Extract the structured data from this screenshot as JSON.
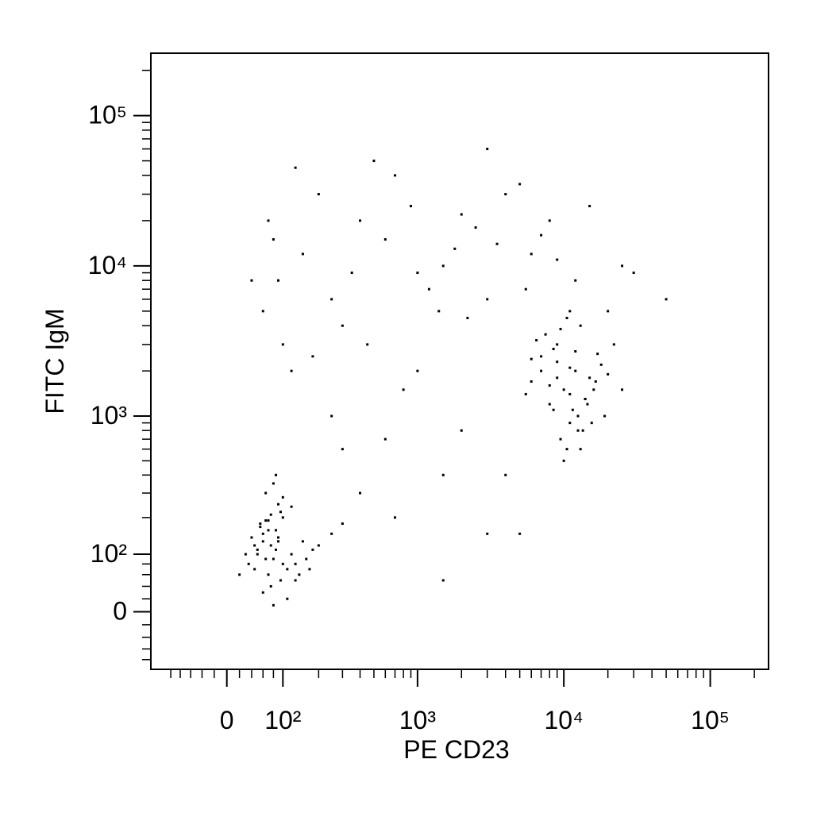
{
  "chart_data": {
    "type": "scatter",
    "scale": "biexponential",
    "color": "#000000",
    "x_label": "PE CD23",
    "y_label": "FITC IgM",
    "xlim": [
      -150,
      250000
    ],
    "ylim": [
      -100,
      260000
    ],
    "xticks": [
      0,
      {
        "value": 100,
        "label": "10²"
      },
      {
        "value": 1000,
        "label": "10³"
      },
      {
        "value": 10000,
        "label": "10⁴"
      },
      {
        "value": 100000,
        "label": "10⁵"
      }
    ],
    "yticks": [
      0,
      {
        "value": 100,
        "label": "10²"
      },
      {
        "value": 1000,
        "label": "10³"
      },
      {
        "value": 10000,
        "label": "10⁴"
      },
      {
        "value": 100000,
        "label": "10⁵"
      }
    ],
    "xminorticks": [
      -100,
      -80,
      -60,
      -40,
      -20,
      20,
      40,
      60,
      80,
      200,
      300,
      400,
      500,
      600,
      700,
      800,
      900,
      2000,
      3000,
      4000,
      5000,
      6000,
      7000,
      8000,
      9000,
      20000,
      30000,
      40000,
      50000,
      60000,
      70000,
      80000,
      90000,
      200000
    ],
    "yminorticks": [
      -80,
      -60,
      -40,
      -20,
      20,
      40,
      60,
      80,
      200,
      300,
      400,
      500,
      600,
      700,
      800,
      900,
      2000,
      3000,
      4000,
      5000,
      6000,
      7000,
      8000,
      9000,
      20000,
      30000,
      40000,
      50000,
      60000,
      70000,
      80000,
      90000,
      200000
    ],
    "x": [
      60,
      80,
      45,
      100,
      70,
      55,
      120,
      90,
      35,
      150,
      75,
      65,
      110,
      85,
      50,
      130,
      95,
      40,
      160,
      70,
      200,
      60,
      80,
      100,
      55,
      30,
      140,
      90,
      75,
      250,
      65,
      110,
      85,
      45,
      180,
      70,
      95,
      120,
      60,
      80,
      300,
      50,
      100,
      75,
      20,
      130,
      90,
      65,
      170,
      85,
      10000,
      12000,
      8000,
      15000,
      9000,
      11000,
      7000,
      14000,
      13000,
      6000,
      18000,
      9500,
      11500,
      8500,
      16000,
      10500,
      7500,
      20000,
      12500,
      9000,
      5500,
      13500,
      11000,
      17000,
      8000,
      14500,
      6500,
      10000,
      19000,
      12000,
      9000,
      15500,
      7000,
      11000,
      22000,
      13000,
      8500,
      10500,
      16500,
      6000,
      12500,
      9500,
      14000,
      25000,
      11000,
      60,
      90,
      150,
      250,
      400,
      600,
      900,
      1500,
      2500,
      4000,
      6000,
      100,
      200,
      350,
      700,
      1200,
      2000,
      3500,
      5000,
      8000,
      12000,
      80,
      300,
      500,
      1000,
      1800,
      3000,
      7000,
      15000,
      25000,
      120,
      180,
      450,
      800,
      1400,
      2200,
      5500,
      9000,
      20000,
      40,
      70,
      130,
      30000,
      50000,
      3000,
      400,
      700,
      1500,
      3000,
      2000,
      600,
      1000,
      4000,
      300,
      1500,
      5000,
      250
    ],
    "values": [
      150,
      90,
      120,
      200,
      60,
      180,
      100,
      250,
      80,
      130,
      40,
      300,
      70,
      160,
      110,
      50,
      220,
      140,
      90,
      190,
      120,
      30,
      350,
      80,
      170,
      100,
      60,
      130,
      210,
      150,
      90,
      20,
      400,
      70,
      110,
      160,
      50,
      240,
      130,
      10,
      180,
      100,
      280,
      120,
      60,
      80,
      140,
      190,
      70,
      110,
      1500,
      2000,
      1200,
      1800,
      3000,
      900,
      2500,
      1300,
      4000,
      1700,
      2200,
      700,
      1100,
      2800,
      1500,
      600,
      3500,
      1900,
      1000,
      2300,
      1400,
      800,
      5000,
      2600,
      1600,
      1200,
      3200,
      500,
      1000,
      2700,
      1800,
      900,
      2000,
      1400,
      3000,
      600,
      1100,
      4500,
      1700,
      2400,
      800,
      3800,
      1300,
      1500,
      2100,
      5000,
      8000,
      12000,
      6000,
      20000,
      15000,
      25000,
      10000,
      18000,
      30000,
      12000,
      3000,
      30000,
      9000,
      40000,
      7000,
      22000,
      14000,
      35000,
      20000,
      8000,
      15000,
      4000,
      50000,
      9000,
      13000,
      6000,
      16000,
      25000,
      10000,
      2000,
      2500,
      3000,
      1500,
      5000,
      4500,
      7000,
      11000,
      5000,
      8000,
      20000,
      45000,
      9000,
      6000,
      60000,
      300,
      200,
      400,
      150,
      800,
      700,
      2000,
      400,
      600,
      50,
      150,
      1000
    ]
  }
}
